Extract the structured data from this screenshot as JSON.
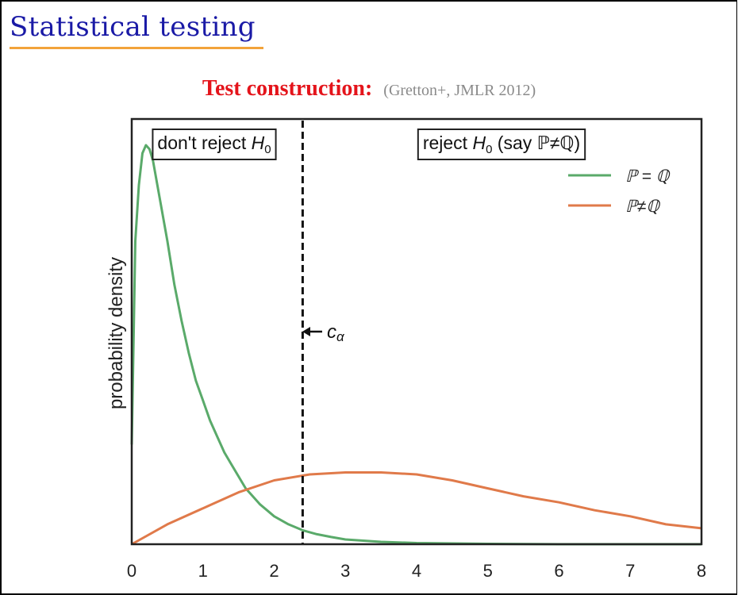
{
  "slide": {
    "title": "Statistical testing",
    "heading": "Test construction:",
    "citation": "(Gretton+, JMLR 2012)"
  },
  "colors": {
    "title": "#1a1aa6",
    "underline": "#f2a33a",
    "heading": "#e4141b",
    "series_null": "#5aaa6a",
    "series_alt": "#e07a4a"
  },
  "chart_data": {
    "type": "line",
    "ylabel": "probability density",
    "xlabel": "",
    "xlim": [
      0,
      8
    ],
    "x_ticks": [
      0,
      1,
      2,
      3,
      4,
      5,
      6,
      7,
      8
    ],
    "y_ticks_shown": false,
    "legend_position": "top-right",
    "region_labels": {
      "left": {
        "text": "don't reject ",
        "math": "H",
        "sub": "0"
      },
      "right": {
        "text": "reject ",
        "math": "H",
        "sub": "0",
        "suffix": " (say ℙ≠ℚ)"
      }
    },
    "threshold": {
      "x": 2.4,
      "label": "c",
      "label_sub": "α"
    },
    "series": [
      {
        "name": "ℙ = ℚ",
        "x": [
          0.0,
          0.05,
          0.1,
          0.15,
          0.2,
          0.25,
          0.3,
          0.35,
          0.4,
          0.5,
          0.6,
          0.7,
          0.8,
          0.9,
          1.0,
          1.1,
          1.2,
          1.3,
          1.4,
          1.5,
          1.6,
          1.7,
          1.8,
          1.9,
          2.0,
          2.2,
          2.4,
          2.6,
          2.8,
          3.0,
          3.5,
          4.0,
          5.0,
          6.0,
          7.0,
          8.0
        ],
        "values": [
          0.25,
          0.76,
          0.9,
          0.98,
          1.0,
          0.99,
          0.96,
          0.91,
          0.86,
          0.76,
          0.65,
          0.56,
          0.48,
          0.41,
          0.36,
          0.31,
          0.27,
          0.23,
          0.2,
          0.17,
          0.14,
          0.12,
          0.1,
          0.085,
          0.07,
          0.05,
          0.035,
          0.025,
          0.018,
          0.012,
          0.006,
          0.003,
          0.001,
          0.0,
          0.0,
          0.0
        ]
      },
      {
        "name": "ℙ≠ℚ",
        "x": [
          0.0,
          0.5,
          1.0,
          1.5,
          2.0,
          2.5,
          3.0,
          3.5,
          4.0,
          4.5,
          5.0,
          5.5,
          6.0,
          6.5,
          7.0,
          7.5,
          8.0
        ],
        "values": [
          0.0,
          0.05,
          0.09,
          0.13,
          0.16,
          0.175,
          0.18,
          0.18,
          0.175,
          0.16,
          0.14,
          0.12,
          0.105,
          0.085,
          0.07,
          0.05,
          0.04
        ]
      }
    ]
  }
}
